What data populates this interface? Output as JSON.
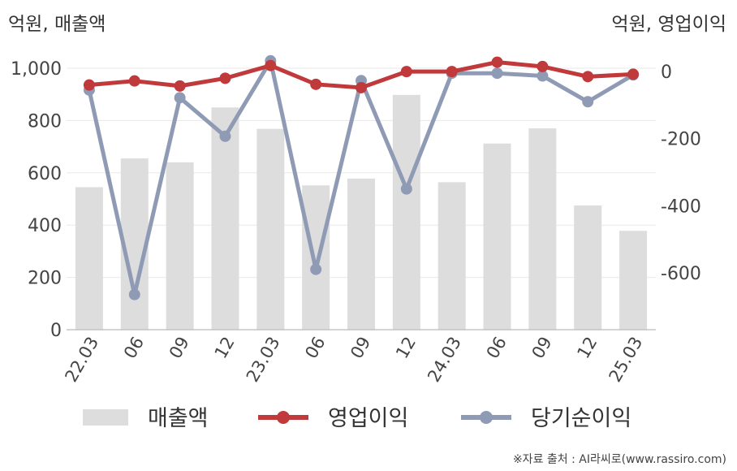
{
  "chart_data": {
    "type": "bar+line",
    "left_unit_label": "억원, 매출액",
    "right_unit_label": "억원, 영업이익",
    "categories": [
      "22.03",
      "06",
      "09",
      "12",
      "23.03",
      "06",
      "09",
      "12",
      "24.03",
      "06",
      "09",
      "12",
      "25.03"
    ],
    "left_axis": {
      "ticks": [
        "0",
        "200",
        "400",
        "600",
        "800",
        "1,000"
      ],
      "min": 0,
      "max": 1000
    },
    "right_axis": {
      "ticks": [
        "0",
        "-200",
        "-400",
        "-600"
      ],
      "min": -770,
      "max": 10
    },
    "series": [
      {
        "name": "매출액",
        "type": "bar",
        "axis": "left",
        "color": "#dddddd",
        "values": [
          545,
          655,
          640,
          850,
          768,
          552,
          578,
          898,
          564,
          712,
          770,
          475,
          378
        ]
      },
      {
        "name": "영업이익",
        "type": "line",
        "axis": "right",
        "color": "#c0393b",
        "values": [
          -40,
          -28,
          -43,
          -20,
          18,
          -38,
          -48,
          0,
          0,
          28,
          15,
          -15,
          -8
        ]
      },
      {
        "name": "당기순이익",
        "type": "line",
        "axis": "right",
        "color": "#8f9bb5",
        "values": [
          -55,
          -665,
          -78,
          -193,
          32,
          -590,
          -27,
          -350,
          -5,
          -5,
          -13,
          -90,
          -10
        ]
      }
    ],
    "legend_position": "bottom",
    "grid": "horizontal"
  },
  "source_text": "※자료 출처 : AI라씨로(www.rassiro.com)"
}
